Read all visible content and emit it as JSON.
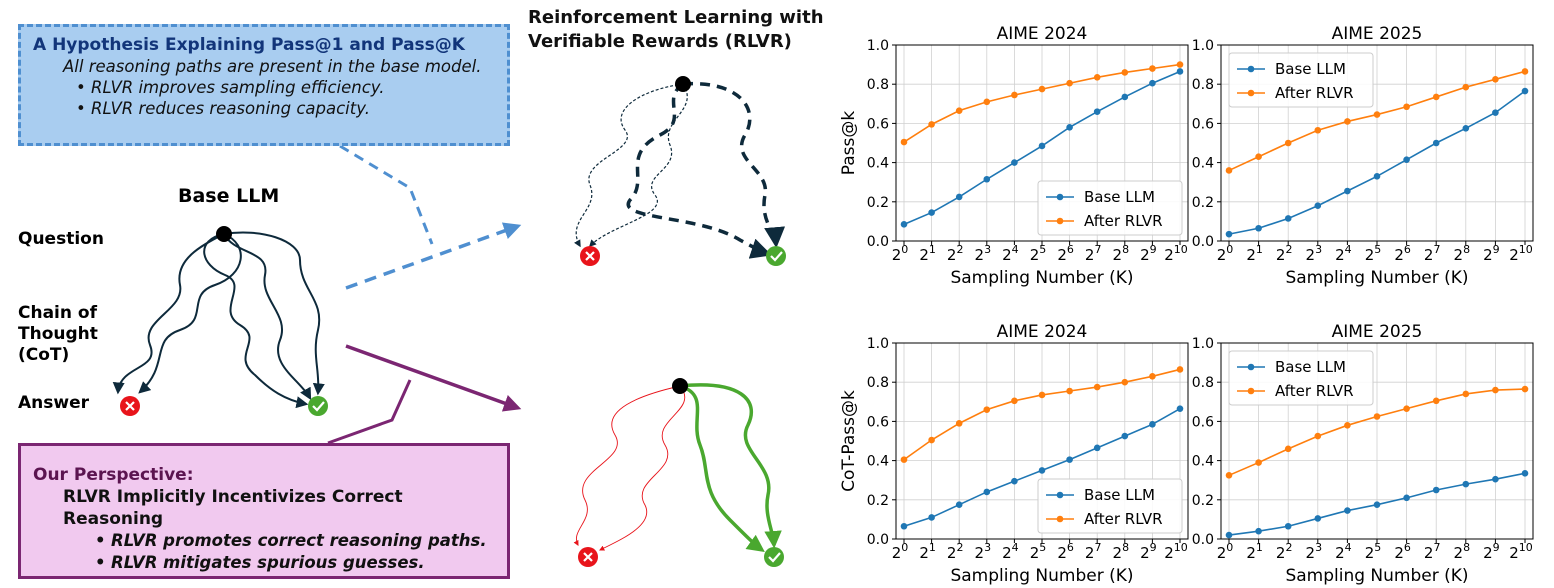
{
  "hypothesis": {
    "title": "A Hypothesis Explaining Pass@1 and Pass@K",
    "line": "All reasoning paths are present in the base model.",
    "bullets": [
      "RLVR improves sampling efficiency.",
      "RLVR reduces reasoning capacity."
    ]
  },
  "perspective": {
    "title": "Our Perspective:",
    "line": "RLVR Implicitly Incentivizes Correct Reasoning",
    "bullets": [
      "RLVR promotes correct reasoning paths.",
      "RLVR mitigates spurious guesses."
    ]
  },
  "base": {
    "title": "Base LLM",
    "question": "Question",
    "cot": [
      "Chain of",
      "Thought",
      "(CoT)"
    ],
    "answer": "Answer"
  },
  "rlvr_title": [
    "Reinforcement Learning with",
    "Verifiable Rewards (RLVR)"
  ],
  "colors": {
    "blue_series": "#1f77b4",
    "orange_series": "#ff7f0e",
    "hyp_fill": "#a9cdf0",
    "hyp_border": "#4f8fd0",
    "ours_fill": "#f1c9ef",
    "ours_border": "#7b2672",
    "wrong": "#e8141b",
    "correct": "#4aa82f",
    "path_dark": "#0e2a3b"
  },
  "chart_data": [
    {
      "type": "line",
      "title": "AIME 2024",
      "xlabel": "Sampling Number (K)",
      "ylabel": "Pass@k",
      "x": [
        0,
        1,
        2,
        3,
        4,
        5,
        6,
        7,
        8,
        9,
        10
      ],
      "xtick_base": "2",
      "ylim": [
        0,
        1.0
      ],
      "yticks": [
        "0.0",
        "0.2",
        "0.4",
        "0.6",
        "0.8",
        "1.0"
      ],
      "grid": true,
      "legend": "lower-right",
      "series": [
        {
          "name": "Base LLM",
          "values": [
            0.085,
            0.145,
            0.225,
            0.315,
            0.4,
            0.485,
            0.58,
            0.66,
            0.735,
            0.805,
            0.865
          ]
        },
        {
          "name": "After RLVR",
          "values": [
            0.505,
            0.595,
            0.665,
            0.71,
            0.745,
            0.775,
            0.805,
            0.835,
            0.86,
            0.88,
            0.9
          ]
        }
      ]
    },
    {
      "type": "line",
      "title": "AIME 2025",
      "xlabel": "Sampling Number (K)",
      "ylabel": "",
      "x": [
        0,
        1,
        2,
        3,
        4,
        5,
        6,
        7,
        8,
        9,
        10
      ],
      "xtick_base": "2",
      "ylim": [
        0,
        1.0
      ],
      "yticks": [
        "0.0",
        "0.2",
        "0.4",
        "0.6",
        "0.8",
        "1.0"
      ],
      "grid": true,
      "legend": "upper-left",
      "series": [
        {
          "name": "Base LLM",
          "values": [
            0.035,
            0.065,
            0.115,
            0.18,
            0.255,
            0.33,
            0.415,
            0.5,
            0.575,
            0.655,
            0.765
          ]
        },
        {
          "name": "After RLVR",
          "values": [
            0.36,
            0.43,
            0.5,
            0.565,
            0.61,
            0.645,
            0.685,
            0.735,
            0.785,
            0.825,
            0.865
          ]
        }
      ]
    },
    {
      "type": "line",
      "title": "AIME 2024",
      "xlabel": "Sampling Number (K)",
      "ylabel": "CoT-Pass@k",
      "x": [
        0,
        1,
        2,
        3,
        4,
        5,
        6,
        7,
        8,
        9,
        10
      ],
      "xtick_base": "2",
      "ylim": [
        0,
        1.0
      ],
      "yticks": [
        "0.0",
        "0.2",
        "0.4",
        "0.6",
        "0.8",
        "1.0"
      ],
      "grid": true,
      "legend": "lower-right",
      "series": [
        {
          "name": "Base LLM",
          "values": [
            0.065,
            0.11,
            0.175,
            0.24,
            0.295,
            0.35,
            0.405,
            0.465,
            0.525,
            0.585,
            0.665
          ]
        },
        {
          "name": "After RLVR",
          "values": [
            0.405,
            0.505,
            0.59,
            0.66,
            0.705,
            0.735,
            0.755,
            0.775,
            0.8,
            0.83,
            0.865
          ]
        }
      ]
    },
    {
      "type": "line",
      "title": "AIME 2025",
      "xlabel": "Sampling Number (K)",
      "ylabel": "",
      "x": [
        0,
        1,
        2,
        3,
        4,
        5,
        6,
        7,
        8,
        9,
        10
      ],
      "xtick_base": "2",
      "ylim": [
        0,
        1.0
      ],
      "yticks": [
        "0.0",
        "0.2",
        "0.4",
        "0.6",
        "0.8",
        "1.0"
      ],
      "grid": true,
      "legend": "upper-left",
      "series": [
        {
          "name": "Base LLM",
          "values": [
            0.02,
            0.04,
            0.065,
            0.105,
            0.145,
            0.175,
            0.21,
            0.25,
            0.28,
            0.305,
            0.335
          ]
        },
        {
          "name": "After RLVR",
          "values": [
            0.325,
            0.39,
            0.46,
            0.525,
            0.58,
            0.625,
            0.665,
            0.705,
            0.74,
            0.76,
            0.765
          ]
        }
      ]
    }
  ]
}
